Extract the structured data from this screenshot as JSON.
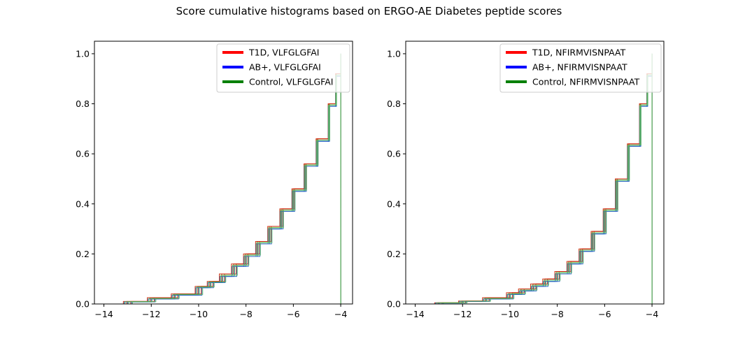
{
  "figure": {
    "title": "Score cumulative histograms based on ERGO-AE Diabetes peptide scores"
  },
  "chart_data": [
    {
      "type": "line",
      "subtype": "cumulative-step-histogram",
      "title": "",
      "xlabel": "",
      "ylabel": "",
      "xlim": [
        -14.4,
        -3.5
      ],
      "ylim": [
        0,
        1.05
      ],
      "xticks": [
        -14,
        -12,
        -10,
        -8,
        -6,
        -4
      ],
      "yticks": [
        0.0,
        0.2,
        0.4,
        0.6,
        0.8,
        1.0
      ],
      "xtick_labels": [
        "−14",
        "−12",
        "−10",
        "−8",
        "−6",
        "−4"
      ],
      "ytick_labels": [
        "0.0",
        "0.2",
        "0.4",
        "0.6",
        "0.8",
        "1.0"
      ],
      "legend_position": "top-right",
      "grid": false,
      "series": [
        {
          "name": "T1D, VLFGLGFAI",
          "color": "#ff0000",
          "curves": 3,
          "x": [
            -14,
            -13,
            -12,
            -11,
            -10,
            -9.5,
            -9,
            -8.5,
            -8,
            -7.5,
            -7,
            -6.5,
            -6,
            -5.5,
            -5,
            -4.5,
            -4.2,
            -4
          ],
          "y": [
            0.0,
            0.01,
            0.025,
            0.04,
            0.07,
            0.09,
            0.12,
            0.16,
            0.2,
            0.25,
            0.31,
            0.38,
            0.46,
            0.56,
            0.66,
            0.8,
            0.92,
            1.0
          ]
        },
        {
          "name": "AB+, VLFGLGFAI",
          "color": "#0000ff",
          "curves": 3,
          "x": [
            -14,
            -13,
            -12,
            -11,
            -10,
            -9.5,
            -9,
            -8.5,
            -8,
            -7.5,
            -7,
            -6.5,
            -6,
            -5.5,
            -5,
            -4.5,
            -4.2,
            -4
          ],
          "y": [
            0.0,
            0.008,
            0.02,
            0.035,
            0.065,
            0.085,
            0.11,
            0.15,
            0.19,
            0.24,
            0.3,
            0.37,
            0.45,
            0.55,
            0.65,
            0.79,
            0.91,
            1.0
          ]
        },
        {
          "name": "Control, VLFGLGFAI",
          "color": "#008000",
          "curves": 3,
          "x": [
            -14,
            -13,
            -12,
            -11,
            -10,
            -9.5,
            -9,
            -8.5,
            -8,
            -7.5,
            -7,
            -6.5,
            -6,
            -5.5,
            -5,
            -4.5,
            -4.2,
            -4
          ],
          "y": [
            0.0,
            0.009,
            0.022,
            0.038,
            0.068,
            0.088,
            0.115,
            0.155,
            0.195,
            0.245,
            0.305,
            0.375,
            0.455,
            0.555,
            0.655,
            0.795,
            0.915,
            1.0
          ]
        }
      ]
    },
    {
      "type": "line",
      "subtype": "cumulative-step-histogram",
      "title": "",
      "xlabel": "",
      "ylabel": "",
      "xlim": [
        -14.4,
        -3.5
      ],
      "ylim": [
        0,
        1.05
      ],
      "xticks": [
        -14,
        -12,
        -10,
        -8,
        -6,
        -4
      ],
      "yticks": [
        0.0,
        0.2,
        0.4,
        0.6,
        0.8,
        1.0
      ],
      "xtick_labels": [
        "−14",
        "−12",
        "−10",
        "−8",
        "−6",
        "−4"
      ],
      "ytick_labels": [
        "0.0",
        "0.2",
        "0.4",
        "0.6",
        "0.8",
        "1.0"
      ],
      "legend_position": "top-right",
      "grid": false,
      "series": [
        {
          "name": "T1D, NFIRMVISNPAAT",
          "color": "#ff0000",
          "curves": 3,
          "x": [
            -14,
            -13,
            -12,
            -11,
            -10,
            -9.5,
            -9,
            -8.5,
            -8,
            -7.5,
            -7,
            -6.5,
            -6,
            -5.5,
            -5,
            -4.5,
            -4.2,
            -4
          ],
          "y": [
            0.0,
            0.005,
            0.012,
            0.025,
            0.045,
            0.06,
            0.08,
            0.1,
            0.13,
            0.17,
            0.22,
            0.29,
            0.38,
            0.5,
            0.64,
            0.8,
            0.92,
            1.0
          ]
        },
        {
          "name": "AB+, NFIRMVISNPAAT",
          "color": "#0000ff",
          "curves": 3,
          "x": [
            -14,
            -13,
            -12,
            -11,
            -10,
            -9.5,
            -9,
            -8.5,
            -8,
            -7.5,
            -7,
            -6.5,
            -6,
            -5.5,
            -5,
            -4.5,
            -4.2,
            -4
          ],
          "y": [
            0.0,
            0.004,
            0.01,
            0.02,
            0.038,
            0.052,
            0.07,
            0.09,
            0.12,
            0.16,
            0.21,
            0.28,
            0.37,
            0.49,
            0.63,
            0.79,
            0.91,
            1.0
          ]
        },
        {
          "name": "Control, NFIRMVISNPAAT",
          "color": "#008000",
          "curves": 3,
          "x": [
            -14,
            -13,
            -12,
            -11,
            -10,
            -9.5,
            -9,
            -8.5,
            -8,
            -7.5,
            -7,
            -6.5,
            -6,
            -5.5,
            -5,
            -4.5,
            -4.2,
            -4
          ],
          "y": [
            0.0,
            0.0045,
            0.011,
            0.022,
            0.041,
            0.056,
            0.075,
            0.095,
            0.125,
            0.165,
            0.215,
            0.285,
            0.375,
            0.495,
            0.635,
            0.795,
            0.915,
            1.0
          ]
        }
      ]
    }
  ]
}
